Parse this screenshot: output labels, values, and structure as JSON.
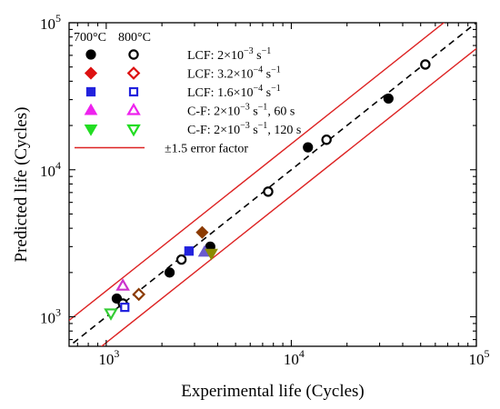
{
  "chart_data": {
    "type": "scatter",
    "xlabel": "Experimental life (Cycles)",
    "ylabel": "Predicted life (Cycles)",
    "xscale": "log",
    "yscale": "log",
    "xlim": [
      630,
      100000
    ],
    "ylim": [
      630,
      100000
    ],
    "x_ticks": [
      {
        "value": 1000,
        "base": "10",
        "exp": "3"
      },
      {
        "value": 10000,
        "base": "10",
        "exp": "4"
      },
      {
        "value": 100000,
        "base": "10",
        "exp": "5"
      }
    ],
    "y_ticks": [
      {
        "value": 1000,
        "base": "10",
        "exp": "3"
      },
      {
        "value": 10000,
        "base": "10",
        "exp": "4"
      },
      {
        "value": 100000,
        "base": "10",
        "exp": "5"
      }
    ],
    "legend": {
      "placement": "top-left",
      "column_headers": [
        "700°C",
        "800°C"
      ]
    },
    "series": [
      {
        "label": "LCF: 2×10⁻³ s⁻¹",
        "temperature": "700°C",
        "marker": "circle",
        "filled": true,
        "color": "#000000",
        "points": [
          [
            1140,
            1330
          ],
          [
            2200,
            2000
          ],
          [
            3650,
            3000
          ],
          [
            12300,
            14200
          ],
          [
            33500,
            30500
          ]
        ]
      },
      {
        "label": "LCF: 2×10⁻³ s⁻¹",
        "temperature": "800°C",
        "marker": "circle",
        "filled": false,
        "color": "#000000",
        "points": [
          [
            1230,
            1230
          ],
          [
            2550,
            2450
          ],
          [
            7500,
            7100
          ],
          [
            15500,
            16000
          ],
          [
            53000,
            52000
          ]
        ]
      },
      {
        "label": "LCF: 3.2×10⁻⁴ s⁻¹",
        "temperature": "700°C",
        "marker": "diamond",
        "filled": true,
        "color": "#8b3a00",
        "points": [
          [
            3300,
            3750
          ]
        ]
      },
      {
        "label": "LCF: 3.2×10⁻⁴ s⁻¹",
        "temperature": "800°C",
        "marker": "diamond",
        "filled": false,
        "color": "#8b3a00",
        "points": [
          [
            1500,
            1420
          ]
        ]
      },
      {
        "label": "LCF: 1.6×10⁻⁴ s⁻¹",
        "temperature": "700°C",
        "marker": "square",
        "filled": true,
        "color": "#2222dd",
        "points": [
          [
            2800,
            2800
          ]
        ]
      },
      {
        "label": "LCF: 1.6×10⁻⁴ s⁻¹",
        "temperature": "800°C",
        "marker": "square",
        "filled": false,
        "color": "#2222dd",
        "points": [
          [
            1260,
            1160
          ]
        ]
      },
      {
        "label": "C-F: 2×10⁻³ s⁻¹, 60 s",
        "temperature": "700°C",
        "marker": "triangle-up",
        "filled": true,
        "color": "#6a5acd",
        "points": [
          [
            3400,
            2750
          ]
        ]
      },
      {
        "label": "C-F: 2×10⁻³ s⁻¹, 60 s",
        "temperature": "800°C",
        "marker": "triangle-up",
        "filled": false,
        "color": "#cc33cc",
        "points": [
          [
            1230,
            1620
          ]
        ]
      },
      {
        "label": "C-F: 2×10⁻³ s⁻¹, 120 s",
        "temperature": "700°C",
        "marker": "triangle-down",
        "filled": true,
        "color": "#8b8b00",
        "points": [
          [
            3700,
            2700
          ]
        ]
      },
      {
        "label": "C-F: 2×10⁻³ s⁻¹, 120 s",
        "temperature": "800°C",
        "marker": "triangle-down",
        "filled": false,
        "color": "#33cc33",
        "points": [
          [
            1060,
            1060
          ]
        ]
      }
    ],
    "lines": [
      {
        "name": "1:1",
        "style": "dashed",
        "color": "#000000"
      },
      {
        "name": "±1.5 error factor",
        "style": "solid",
        "color": "#dd2222",
        "factors": [
          1.5,
          0.6667
        ]
      }
    ],
    "legend_entries": [
      {
        "text": "LCF: 2×10",
        "sup1": "−3",
        "mid": " s",
        "sup2": "−1",
        "tail": "",
        "col1": {
          "marker": "circle",
          "filled": true,
          "color": "#000000"
        },
        "col2": {
          "marker": "circle",
          "filled": false,
          "color": "#000000"
        }
      },
      {
        "text": "LCF: 3.2×10",
        "sup1": "−4",
        "mid": " s",
        "sup2": "−1",
        "tail": "",
        "col1": {
          "marker": "diamond",
          "filled": true,
          "color": "#dd1111"
        },
        "col2": {
          "marker": "diamond",
          "filled": false,
          "color": "#dd1111"
        }
      },
      {
        "text": "LCF: 1.6×10",
        "sup1": "−4",
        "mid": " s",
        "sup2": "−1",
        "tail": "",
        "col1": {
          "marker": "square",
          "filled": true,
          "color": "#2222dd"
        },
        "col2": {
          "marker": "square",
          "filled": false,
          "color": "#2222dd"
        }
      },
      {
        "text": "C-F: 2×10",
        "sup1": "−3",
        "mid": " s",
        "sup2": "−1",
        "tail": ", 60 s",
        "col1": {
          "marker": "triangle-up",
          "filled": true,
          "color": "#ee22ee"
        },
        "col2": {
          "marker": "triangle-up",
          "filled": false,
          "color": "#ee22ee"
        }
      },
      {
        "text": "C-F: 2×10",
        "sup1": "−3",
        "mid": " s",
        "sup2": "−1",
        "tail": ", 120 s",
        "col1": {
          "marker": "triangle-down",
          "filled": true,
          "color": "#22dd22"
        },
        "col2": {
          "marker": "triangle-down",
          "filled": false,
          "color": "#22dd22"
        }
      },
      {
        "text": "±1.5 error factor",
        "sup1": "",
        "mid": "",
        "sup2": "",
        "tail": "",
        "line": {
          "color": "#dd2222"
        }
      }
    ]
  }
}
